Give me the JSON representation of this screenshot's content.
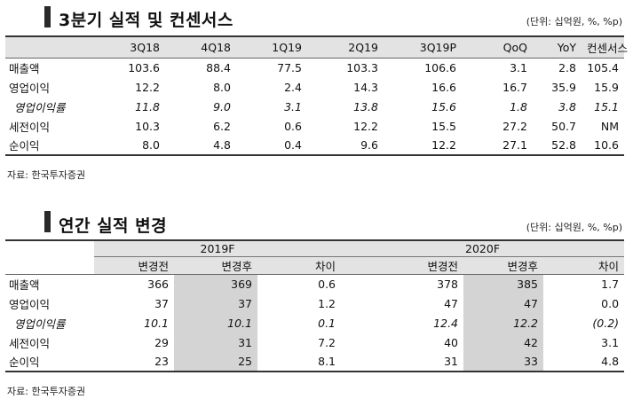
{
  "section1": {
    "title": "3분기 실적 및 컨센서스",
    "unit": "(단위: 십억원, %, %p)",
    "columns": [
      "",
      "3Q18",
      "4Q18",
      "1Q19",
      "2Q19",
      "3Q19P",
      "QoQ",
      "YoY",
      "컨센서스"
    ],
    "rows": [
      {
        "label": "매출액",
        "values": [
          "103.6",
          "88.4",
          "77.5",
          "103.3",
          "106.6",
          "3.1",
          "2.8",
          "105.4"
        ],
        "italic": false
      },
      {
        "label": "영업이익",
        "values": [
          "12.2",
          "8.0",
          "2.4",
          "14.3",
          "16.6",
          "16.7",
          "35.9",
          "15.9"
        ],
        "italic": false
      },
      {
        "label": "영업이익률",
        "values": [
          "11.8",
          "9.0",
          "3.1",
          "13.8",
          "15.6",
          "1.8",
          "3.8",
          "15.1"
        ],
        "italic": true
      },
      {
        "label": "세전이익",
        "values": [
          "10.3",
          "6.2",
          "0.6",
          "12.2",
          "15.5",
          "27.2",
          "50.7",
          "NM"
        ],
        "italic": false
      },
      {
        "label": "순이익",
        "values": [
          "8.0",
          "4.8",
          "0.4",
          "9.6",
          "12.2",
          "27.1",
          "52.8",
          "10.6"
        ],
        "italic": false
      }
    ],
    "source": "자료: 한국투자증권"
  },
  "section2": {
    "title": "연간 실적 변경",
    "unit": "(단위: 십억원, %, %p)",
    "groups": [
      "2019F",
      "2020F"
    ],
    "subcolumns": [
      "변경전",
      "변경후",
      "차이",
      "변경전",
      "변경후",
      "차이"
    ],
    "rows": [
      {
        "label": "매출액",
        "values": [
          "366",
          "369",
          "0.6",
          "378",
          "385",
          "1.7"
        ],
        "italic": false
      },
      {
        "label": "영업이익",
        "values": [
          "37",
          "37",
          "1.2",
          "47",
          "47",
          "0.0"
        ],
        "italic": false
      },
      {
        "label": "영업이익률",
        "values": [
          "10.1",
          "10.1",
          "0.1",
          "12.4",
          "12.2",
          "(0.2)"
        ],
        "italic": true
      },
      {
        "label": "세전이익",
        "values": [
          "29",
          "31",
          "7.2",
          "40",
          "42",
          "3.1"
        ],
        "italic": false
      },
      {
        "label": "순이익",
        "values": [
          "23",
          "25",
          "8.1",
          "31",
          "33",
          "4.8"
        ],
        "italic": false
      }
    ],
    "source": "자료: 한국투자증권"
  }
}
